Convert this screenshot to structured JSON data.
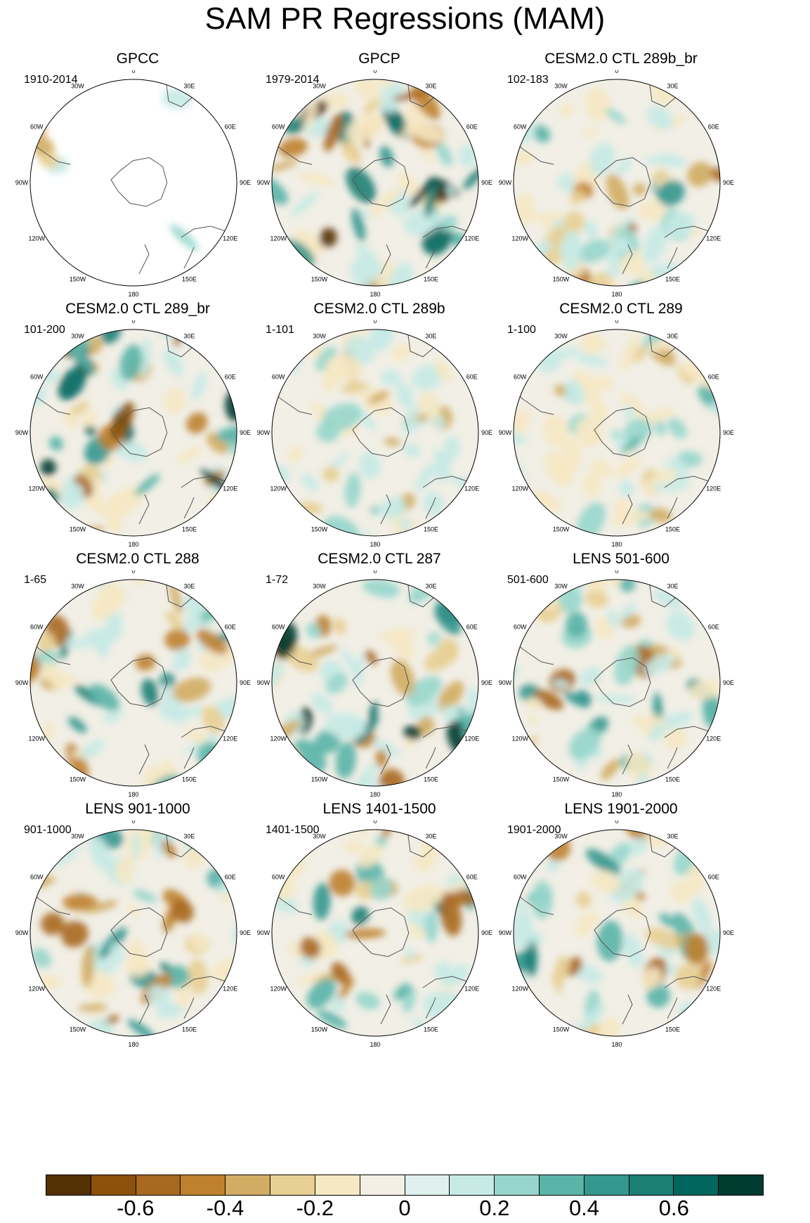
{
  "title": "SAM PR Regressions (MAM)",
  "panels": [
    {
      "title": "GPCC",
      "period": "1910-2014",
      "style": "sparse",
      "seed": 3
    },
    {
      "title": "GPCP",
      "period": "1979-2014",
      "style": "strong",
      "seed": 11
    },
    {
      "title": "CESM2.0 CTL 289b_br",
      "period": "102-183",
      "style": "medium",
      "seed": 19
    },
    {
      "title": "CESM2.0 CTL 289_br",
      "period": "101-200",
      "style": "strong",
      "seed": 27
    },
    {
      "title": "CESM2.0 CTL 289b",
      "period": "1-101",
      "style": "weak",
      "seed": 35
    },
    {
      "title": "CESM2.0 CTL 289",
      "period": "1-100",
      "style": "weak",
      "seed": 43
    },
    {
      "title": "CESM2.0 CTL 288",
      "period": "1-65",
      "style": "medium",
      "seed": 51
    },
    {
      "title": "CESM2.0 CTL 287",
      "period": "1-72",
      "style": "strong",
      "seed": 59
    },
    {
      "title": "LENS 501-600",
      "period": "501-600",
      "style": "medium",
      "seed": 67
    },
    {
      "title": "LENS 901-1000",
      "period": "901-1000",
      "style": "medium",
      "seed": 75
    },
    {
      "title": "LENS 1401-1500",
      "period": "1401-1500",
      "style": "medium",
      "seed": 83
    },
    {
      "title": "LENS 1901-2000",
      "period": "1901-2000",
      "style": "medium",
      "seed": 91
    }
  ],
  "longitude_labels": [
    "0",
    "30E",
    "60E",
    "90E",
    "120E",
    "150E",
    "180",
    "150W",
    "120W",
    "90W",
    "60W",
    "30W"
  ],
  "colorbar": {
    "colors": [
      "#543005",
      "#8c510a",
      "#a86820",
      "#bf812d",
      "#d2ac63",
      "#e8cf94",
      "#f6e8c3",
      "#f3efe4",
      "#e0f0ee",
      "#c7eae5",
      "#97d6cc",
      "#5ab4a8",
      "#35978f",
      "#1c7f75",
      "#01665e",
      "#003c30"
    ],
    "tick_labels": [
      "-0.6",
      "-0.4",
      "-0.2",
      "0",
      "0.2",
      "0.4",
      "0.6"
    ]
  }
}
